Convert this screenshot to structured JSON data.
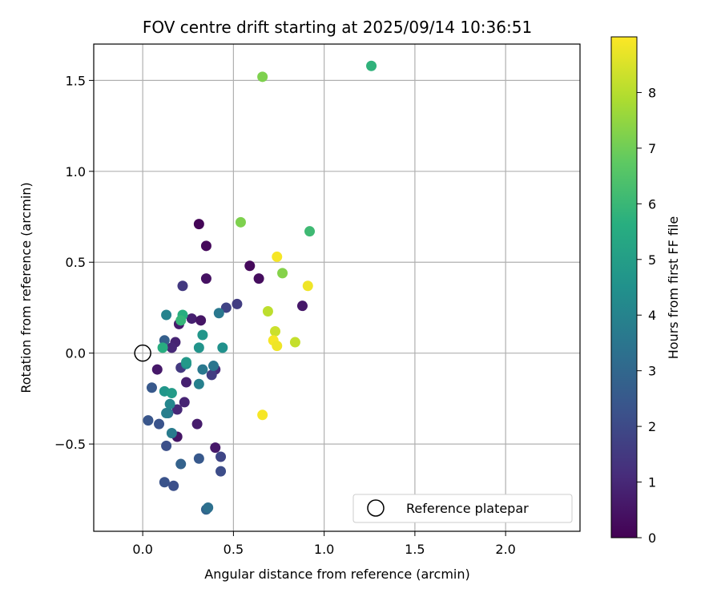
{
  "chart_data": {
    "type": "scatter",
    "title": "FOV centre drift starting at 2025/09/14 10:36:51",
    "xlabel": "Angular distance from reference (arcmin)",
    "ylabel": "Rotation from reference (arcmin)",
    "xlim": [
      -0.27,
      2.41
    ],
    "ylim": [
      -0.98,
      1.7
    ],
    "x_ticks": [
      0.0,
      0.5,
      1.0,
      1.5,
      2.0
    ],
    "x_tick_labels": [
      "0.0",
      "0.5",
      "1.0",
      "1.5",
      "2.0"
    ],
    "y_ticks": [
      -0.5,
      0.0,
      0.5,
      1.0,
      1.5
    ],
    "y_tick_labels": [
      "−0.5",
      "0.0",
      "0.5",
      "1.0",
      "1.5"
    ],
    "grid": true,
    "colormap": "viridis",
    "colorbar": {
      "label": "Hours from first FF file",
      "range": [
        0,
        9
      ],
      "ticks": [
        0,
        1,
        2,
        3,
        4,
        5,
        6,
        7,
        8
      ],
      "tick_labels": [
        "0",
        "1",
        "2",
        "3",
        "4",
        "5",
        "6",
        "7",
        "8"
      ]
    },
    "reference_point": {
      "x": 0.0,
      "y": 0.0,
      "label": "Reference platepar"
    },
    "legend": {
      "position": "lower-right",
      "entries": [
        "Reference platepar"
      ]
    },
    "points": [
      {
        "x": 0.31,
        "y": 0.71,
        "h": 0.1
      },
      {
        "x": 0.35,
        "y": 0.59,
        "h": 0.2
      },
      {
        "x": 0.59,
        "y": 0.48,
        "h": 0.2
      },
      {
        "x": 0.64,
        "y": 0.41,
        "h": 0.3
      },
      {
        "x": 0.35,
        "y": 0.41,
        "h": 0.4
      },
      {
        "x": 0.88,
        "y": 0.26,
        "h": 0.6
      },
      {
        "x": 0.27,
        "y": 0.19,
        "h": 0.8
      },
      {
        "x": 0.32,
        "y": 0.18,
        "h": 0.5
      },
      {
        "x": 0.2,
        "y": 0.16,
        "h": 0.7
      },
      {
        "x": 0.18,
        "y": 0.06,
        "h": 0.9
      },
      {
        "x": 0.16,
        "y": 0.03,
        "h": 1.0
      },
      {
        "x": 0.08,
        "y": -0.09,
        "h": 0.6
      },
      {
        "x": 0.4,
        "y": -0.09,
        "h": 1.1
      },
      {
        "x": 0.24,
        "y": -0.16,
        "h": 0.8
      },
      {
        "x": 0.23,
        "y": -0.27,
        "h": 0.9
      },
      {
        "x": 0.19,
        "y": -0.31,
        "h": 1.0
      },
      {
        "x": 0.3,
        "y": -0.39,
        "h": 0.7
      },
      {
        "x": 0.19,
        "y": -0.46,
        "h": 0.5
      },
      {
        "x": 0.4,
        "y": -0.52,
        "h": 0.6
      },
      {
        "x": 0.22,
        "y": 0.37,
        "h": 1.5
      },
      {
        "x": 0.52,
        "y": 0.27,
        "h": 1.6
      },
      {
        "x": 0.46,
        "y": 0.25,
        "h": 1.8
      },
      {
        "x": 0.21,
        "y": -0.08,
        "h": 1.5
      },
      {
        "x": 0.38,
        "y": -0.12,
        "h": 1.6
      },
      {
        "x": 0.05,
        "y": -0.19,
        "h": 2.5
      },
      {
        "x": 0.03,
        "y": -0.37,
        "h": 2.4
      },
      {
        "x": 0.09,
        "y": -0.39,
        "h": 2.3
      },
      {
        "x": 0.13,
        "y": -0.51,
        "h": 2.2
      },
      {
        "x": 0.43,
        "y": -0.57,
        "h": 1.9
      },
      {
        "x": 0.43,
        "y": -0.65,
        "h": 2.1
      },
      {
        "x": 0.31,
        "y": -0.58,
        "h": 2.5
      },
      {
        "x": 0.21,
        "y": -0.61,
        "h": 2.8
      },
      {
        "x": 0.12,
        "y": -0.71,
        "h": 2.3
      },
      {
        "x": 0.17,
        "y": -0.73,
        "h": 2.2
      },
      {
        "x": 0.35,
        "y": -0.86,
        "h": 2.9
      },
      {
        "x": 0.36,
        "y": -0.85,
        "h": 3.3
      },
      {
        "x": 0.12,
        "y": 0.07,
        "h": 2.7
      },
      {
        "x": 0.42,
        "y": 0.22,
        "h": 3.6
      },
      {
        "x": 0.13,
        "y": 0.21,
        "h": 4.0
      },
      {
        "x": 0.14,
        "y": -0.33,
        "h": 3.3
      },
      {
        "x": 0.13,
        "y": -0.33,
        "h": 3.8
      },
      {
        "x": 0.15,
        "y": -0.28,
        "h": 4.1
      },
      {
        "x": 0.16,
        "y": -0.44,
        "h": 3.7
      },
      {
        "x": 0.33,
        "y": -0.09,
        "h": 3.6
      },
      {
        "x": 0.39,
        "y": -0.07,
        "h": 3.5
      },
      {
        "x": 0.31,
        "y": -0.17,
        "h": 3.9
      },
      {
        "x": 0.24,
        "y": -0.06,
        "h": 4.4
      },
      {
        "x": 0.24,
        "y": -0.05,
        "h": 4.8
      },
      {
        "x": 0.33,
        "y": 0.1,
        "h": 4.7
      },
      {
        "x": 0.31,
        "y": 0.03,
        "h": 4.6
      },
      {
        "x": 0.44,
        "y": 0.03,
        "h": 4.5
      },
      {
        "x": 0.12,
        "y": -0.21,
        "h": 4.7
      },
      {
        "x": 0.16,
        "y": -0.22,
        "h": 4.9
      },
      {
        "x": 0.22,
        "y": 0.21,
        "h": 5.6
      },
      {
        "x": 0.21,
        "y": 0.18,
        "h": 5.9
      },
      {
        "x": 0.11,
        "y": 0.03,
        "h": 5.6
      },
      {
        "x": 1.26,
        "y": 1.58,
        "h": 5.8
      },
      {
        "x": 0.92,
        "y": 0.67,
        "h": 6.1
      },
      {
        "x": 0.66,
        "y": 1.52,
        "h": 7.2
      },
      {
        "x": 0.54,
        "y": 0.72,
        "h": 7.2
      },
      {
        "x": 0.77,
        "y": 0.44,
        "h": 7.3
      },
      {
        "x": 0.69,
        "y": 0.23,
        "h": 8.1
      },
      {
        "x": 0.73,
        "y": 0.12,
        "h": 8.3
      },
      {
        "x": 0.84,
        "y": 0.06,
        "h": 8.2
      },
      {
        "x": 0.72,
        "y": 0.07,
        "h": 8.9
      },
      {
        "x": 0.74,
        "y": 0.04,
        "h": 8.8
      },
      {
        "x": 0.74,
        "y": 0.53,
        "h": 8.9
      },
      {
        "x": 0.91,
        "y": 0.37,
        "h": 8.8
      },
      {
        "x": 0.66,
        "y": -0.34,
        "h": 8.9
      }
    ]
  }
}
